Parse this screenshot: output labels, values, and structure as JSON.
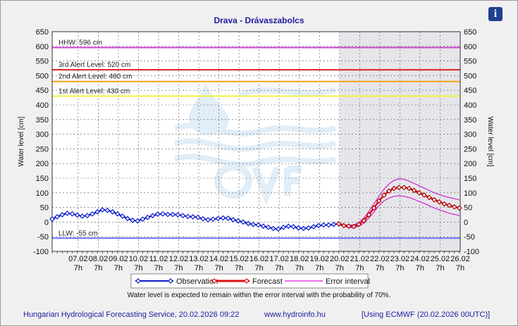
{
  "title": "Drava - Drávaszabolcs",
  "info_icon_label": "i",
  "chart_data": {
    "type": "line",
    "title": "Drava - Drávaszabolcs",
    "ylabel_left": "Water level [cm]",
    "ylabel_right": "Water level [cm]",
    "ylim": [
      -100,
      650
    ],
    "yticks": [
      -100,
      -50,
      0,
      50,
      100,
      150,
      200,
      250,
      300,
      350,
      400,
      450,
      500,
      550,
      600,
      650
    ],
    "x_range_days": [
      "06.02 0h",
      "26.02 7h"
    ],
    "x_ticks": [
      {
        "date": "07.02",
        "hour": "7h"
      },
      {
        "date": "08.02",
        "hour": "7h"
      },
      {
        "date": "09.02",
        "hour": "7h"
      },
      {
        "date": "10.02",
        "hour": "7h"
      },
      {
        "date": "11.02",
        "hour": "7h"
      },
      {
        "date": "12.02",
        "hour": "7h"
      },
      {
        "date": "13.02",
        "hour": "7h"
      },
      {
        "date": "14.02",
        "hour": "7h"
      },
      {
        "date": "15.02",
        "hour": "7h"
      },
      {
        "date": "16.02",
        "hour": "7h"
      },
      {
        "date": "17.02",
        "hour": "7h"
      },
      {
        "date": "18.02",
        "hour": "7h"
      },
      {
        "date": "19.02",
        "hour": "7h"
      },
      {
        "date": "20.02",
        "hour": "7h"
      },
      {
        "date": "21.02",
        "hour": "7h"
      },
      {
        "date": "22.02",
        "hour": "7h"
      },
      {
        "date": "23.02",
        "hour": "7h"
      },
      {
        "date": "24.02",
        "hour": "7h"
      },
      {
        "date": "25.02",
        "hour": "7h"
      },
      {
        "date": "26.02",
        "hour": "7h"
      }
    ],
    "forecast_start": "20.02 7h",
    "levels": [
      {
        "name": "HHW",
        "label": "HHW: 596 cm",
        "value": 596,
        "color": "#cc44cc"
      },
      {
        "name": "3rd Alert Level",
        "label": "3rd Alert Level: 520 cm",
        "value": 520,
        "color": "#e02020"
      },
      {
        "name": "2nd Alert Level",
        "label": "2nd Alert Level: 480 cm",
        "value": 480,
        "color": "#f0a020"
      },
      {
        "name": "1st Alert Level",
        "label": "1st Alert Level: 430 cm",
        "value": 430,
        "color": "#f0f040"
      },
      {
        "name": "LLW",
        "label": "LLW: -55 cm",
        "value": -55,
        "color": "#6f6fff"
      }
    ],
    "series": [
      {
        "name": "Observation",
        "color": "#0a1ac8",
        "x": [
          "06.02 0h",
          "06.02 6h",
          "06.02 12h",
          "06.02 18h",
          "07.02 0h",
          "07.02 6h",
          "07.02 12h",
          "07.02 18h",
          "08.02 0h",
          "08.02 6h",
          "08.02 12h",
          "08.02 18h",
          "09.02 0h",
          "09.02 6h",
          "09.02 12h",
          "09.02 18h",
          "10.02 0h",
          "10.02 6h",
          "10.02 12h",
          "10.02 18h",
          "11.02 0h",
          "11.02 6h",
          "11.02 12h",
          "11.02 18h",
          "12.02 0h",
          "12.02 6h",
          "12.02 12h",
          "12.02 18h",
          "13.02 0h",
          "13.02 6h",
          "13.02 12h",
          "13.02 18h",
          "14.02 0h",
          "14.02 6h",
          "14.02 12h",
          "14.02 18h",
          "15.02 0h",
          "15.02 6h",
          "15.02 12h",
          "15.02 18h",
          "16.02 0h",
          "16.02 6h",
          "16.02 12h",
          "16.02 18h",
          "17.02 0h",
          "17.02 6h",
          "17.02 12h",
          "17.02 18h",
          "18.02 0h",
          "18.02 6h",
          "18.02 12h",
          "18.02 18h",
          "19.02 0h",
          "19.02 6h",
          "19.02 12h",
          "19.02 18h",
          "20.02 0h",
          "20.02 6h"
        ],
        "values": [
          10,
          18,
          25,
          30,
          28,
          24,
          20,
          22,
          28,
          35,
          42,
          40,
          35,
          28,
          20,
          12,
          6,
          4,
          10,
          16,
          22,
          27,
          28,
          26,
          26,
          25,
          22,
          19,
          18,
          16,
          11,
          8,
          10,
          12,
          14,
          13,
          8,
          4,
          0,
          -5,
          -8,
          -10,
          -14,
          -18,
          -22,
          -24,
          -18,
          -14,
          -16,
          -20,
          -22,
          -20,
          -16,
          -12,
          -10,
          -10,
          -8,
          -6
        ]
      },
      {
        "name": "Forecast",
        "color": "#e01010",
        "x": [
          "20.02 6h",
          "20.02 12h",
          "20.02 18h",
          "21.02 0h",
          "21.02 6h",
          "21.02 12h",
          "21.02 18h",
          "22.02 0h",
          "22.02 6h",
          "22.02 12h",
          "22.02 18h",
          "23.02 0h",
          "23.02 6h",
          "23.02 12h",
          "23.02 18h",
          "24.02 0h",
          "24.02 6h",
          "24.02 12h",
          "24.02 18h",
          "25.02 0h",
          "25.02 6h",
          "25.02 12h",
          "25.02 18h",
          "26.02 0h",
          "26.02 6h"
        ],
        "values": [
          -6,
          -12,
          -14,
          -15,
          -8,
          5,
          25,
          48,
          72,
          92,
          106,
          115,
          118,
          118,
          115,
          108,
          100,
          92,
          84,
          76,
          69,
          62,
          57,
          52,
          48
        ]
      },
      {
        "name": "Error interval",
        "color": "#d020d0",
        "x": [
          "20.02 6h",
          "20.02 12h",
          "20.02 18h",
          "21.02 0h",
          "21.02 6h",
          "21.02 12h",
          "21.02 18h",
          "22.02 0h",
          "22.02 6h",
          "22.02 12h",
          "22.02 18h",
          "23.02 0h",
          "23.02 6h",
          "23.02 12h",
          "23.02 18h",
          "24.02 0h",
          "24.02 6h",
          "24.02 12h",
          "24.02 18h",
          "25.02 0h",
          "25.02 6h",
          "25.02 12h",
          "25.02 18h",
          "26.02 0h",
          "26.02 6h"
        ],
        "upper": [
          -4,
          -9,
          -10,
          -10,
          -2,
          14,
          36,
          62,
          88,
          112,
          130,
          142,
          148,
          146,
          140,
          132,
          124,
          116,
          108,
          100,
          94,
          88,
          84,
          80,
          76
        ],
        "lower": [
          -8,
          -15,
          -18,
          -20,
          -14,
          -4,
          14,
          34,
          56,
          72,
          82,
          88,
          90,
          88,
          84,
          78,
          70,
          64,
          56,
          48,
          42,
          36,
          30,
          26,
          22
        ]
      }
    ],
    "legend": [
      "Observation",
      "Forecast",
      "Error interval"
    ],
    "legend_position": "bottom"
  },
  "note": "Water level is expected to remain within the error interval with the probability of 70%.",
  "footer": {
    "left": "Hungarian Hydrological Forecasting Service, 20.02.2026 09:22",
    "center": "www.hydroinfo.hu",
    "right": "[Using ECMWF (20.02.2026  00UTC)]"
  },
  "colors": {
    "title": "#1c1ca0",
    "forecast_shade": "#e6e6ea",
    "background": "#f0f0f0"
  }
}
